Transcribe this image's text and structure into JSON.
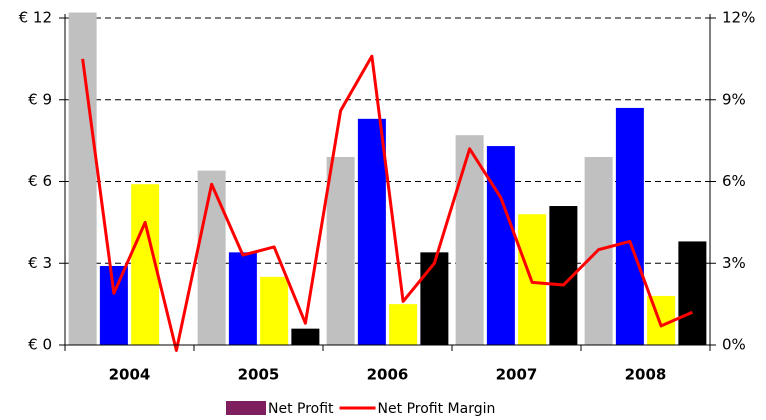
{
  "chart_data": {
    "type": "bar_line",
    "categories": [
      null,
      null,
      null,
      null,
      null,
      null,
      null,
      null,
      null,
      null,
      null,
      null,
      null,
      null,
      null,
      null,
      null,
      null,
      null,
      null
    ],
    "group_labels": [
      "2004",
      "2005",
      "2006",
      "2007",
      "2008"
    ],
    "series": [
      {
        "name": "Net Profit",
        "type": "bar",
        "color": "#7f1f5f",
        "colors": [
          "#c0c0c0",
          "#0000ff",
          "#ffff00",
          "#000000",
          "#c0c0c0",
          "#0000ff",
          "#ffff00",
          "#000000",
          "#c0c0c0",
          "#0000ff",
          "#ffff00",
          "#000000",
          "#c0c0c0",
          "#0000ff",
          "#ffff00",
          "#000000",
          "#c0c0c0",
          "#0000ff",
          "#ffff00",
          "#000000"
        ],
        "values": [
          12.2,
          2.9,
          5.9,
          0,
          6.4,
          3.4,
          2.5,
          0.6,
          6.9,
          8.3,
          1.5,
          3.4,
          7.7,
          7.3,
          4.8,
          5.1,
          6.9,
          8.7,
          1.8,
          3.8
        ]
      },
      {
        "name": "Net Profit Margin",
        "type": "line",
        "axis": "y2",
        "color": "#ff0000",
        "values": [
          10.5,
          1.9,
          4.5,
          -0.2,
          5.9,
          3.3,
          3.6,
          0.8,
          8.6,
          10.6,
          1.6,
          3.0,
          7.2,
          5.4,
          2.3,
          2.2,
          3.5,
          3.8,
          0.7,
          1.2
        ]
      }
    ],
    "ylim": [
      0,
      12
    ],
    "yticks": [
      {
        "value": 0,
        "label": "€ 0"
      },
      {
        "value": 3,
        "label": "€ 3"
      },
      {
        "value": 6,
        "label": "€ 6"
      },
      {
        "value": 9,
        "label": "€ 9"
      },
      {
        "value": 12,
        "label": "€ 12"
      }
    ],
    "y2lim": [
      0,
      12
    ],
    "y2ticks": [
      {
        "value": 0,
        "label": "0%"
      },
      {
        "value": 3,
        "label": "3%"
      },
      {
        "value": 6,
        "label": "6%"
      },
      {
        "value": 9,
        "label": "9%"
      },
      {
        "value": 12,
        "label": "12%"
      }
    ],
    "grid": true
  }
}
